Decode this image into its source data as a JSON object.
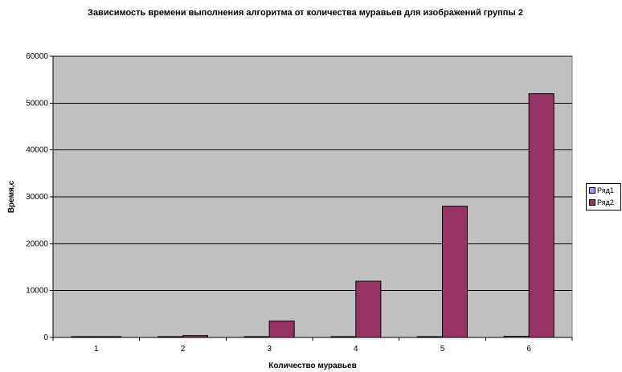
{
  "chart_data": {
    "type": "bar",
    "title": "Зависимость времени выполнения алгоритма от количества муравьев для изображений группы 2",
    "xlabel": "Количество муравьев",
    "ylabel": "Время,с",
    "categories": [
      "1",
      "2",
      "3",
      "4",
      "5",
      "6"
    ],
    "ylim": [
      0,
      60000
    ],
    "yticks": [
      0,
      10000,
      20000,
      30000,
      40000,
      50000,
      60000
    ],
    "grid": true,
    "legend_position": "right",
    "series": [
      {
        "name": "Ряд1",
        "color": "#9999ff",
        "values": [
          10,
          30,
          40,
          120,
          150,
          250
        ]
      },
      {
        "name": "Ряд2",
        "color": "#993366",
        "values": [
          80,
          400,
          3500,
          12000,
          28000,
          52000
        ]
      }
    ],
    "plot_background": "#c0c0c0"
  }
}
